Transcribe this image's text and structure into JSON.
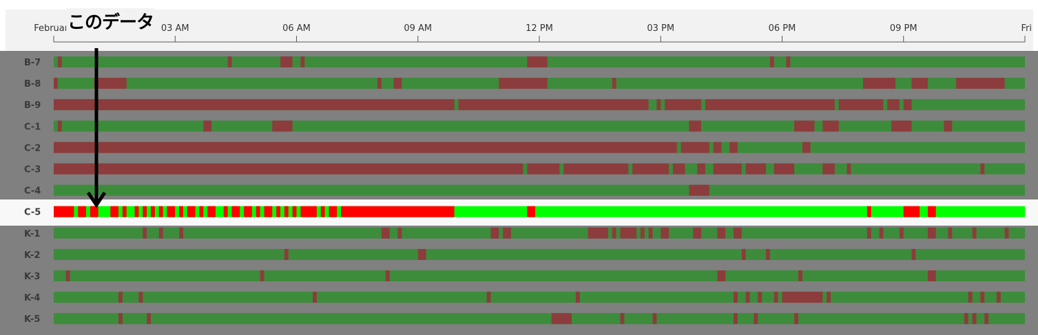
{
  "annotation": {
    "text": "このデータ"
  },
  "colors": {
    "ok": "#3c8c3c",
    "fail": "#8c3c3c",
    "ok_highlight": "#00ff00",
    "fail_highlight": "#ff0000",
    "background": "#808080",
    "arrow": "#000000"
  },
  "chart_data": {
    "type": "timeline",
    "x_ticks": [
      {
        "hour": 0,
        "label": "February"
      },
      {
        "hour": 3,
        "label": "03 AM"
      },
      {
        "hour": 6,
        "label": "06 AM"
      },
      {
        "hour": 9,
        "label": "09 AM"
      },
      {
        "hour": 12,
        "label": "12 PM"
      },
      {
        "hour": 15,
        "label": "03 PM"
      },
      {
        "hour": 18,
        "label": "06 PM"
      },
      {
        "hour": 21,
        "label": "09 PM"
      },
      {
        "hour": 24,
        "label": "Fri"
      }
    ],
    "xlim": [
      0,
      24
    ],
    "status_values": [
      "ok",
      "fail"
    ],
    "highlighted_row": 7,
    "rows": [
      {
        "label": "B-7",
        "fail": [
          [
            0.1,
            0.2
          ],
          [
            4.3,
            4.4
          ],
          [
            5.6,
            5.9
          ],
          [
            6.1,
            6.2
          ],
          [
            11.7,
            12.2
          ],
          [
            17.7,
            17.8
          ],
          [
            18.1,
            18.2
          ]
        ]
      },
      {
        "label": "B-8",
        "fail": [
          [
            0,
            0.1
          ],
          [
            1.0,
            1.8
          ],
          [
            8.0,
            8.1
          ],
          [
            8.4,
            8.6
          ],
          [
            11.0,
            12.2
          ],
          [
            13.8,
            13.9
          ],
          [
            20.0,
            20.8
          ],
          [
            21.2,
            21.6
          ],
          [
            22.3,
            23.5
          ]
        ]
      },
      {
        "label": "B-9",
        "fail": [
          [
            0,
            9.9
          ],
          [
            10.0,
            14.7
          ],
          [
            14.9,
            15.0
          ],
          [
            15.1,
            16.0
          ],
          [
            16.1,
            19.3
          ],
          [
            19.4,
            20.5
          ],
          [
            20.6,
            20.9
          ],
          [
            21.0,
            21.2
          ]
        ]
      },
      {
        "label": "C-1",
        "fail": [
          [
            0.1,
            0.2
          ],
          [
            3.7,
            3.9
          ],
          [
            5.4,
            5.9
          ],
          [
            15.7,
            16.0
          ],
          [
            18.3,
            18.8
          ],
          [
            19.0,
            19.4
          ],
          [
            20.7,
            21.2
          ],
          [
            22.0,
            22.2
          ]
        ]
      },
      {
        "label": "C-2",
        "fail": [
          [
            0,
            15.4
          ],
          [
            15.5,
            16.2
          ],
          [
            16.3,
            16.5
          ],
          [
            16.7,
            16.9
          ],
          [
            18.5,
            18.7
          ]
        ]
      },
      {
        "label": "C-3",
        "fail": [
          [
            0,
            11.6
          ],
          [
            11.7,
            12.5
          ],
          [
            12.6,
            14.2
          ],
          [
            14.3,
            15.2
          ],
          [
            15.3,
            15.6
          ],
          [
            15.9,
            16.1
          ],
          [
            16.3,
            17.0
          ],
          [
            17.1,
            17.6
          ],
          [
            17.8,
            18.3
          ],
          [
            19.0,
            19.3
          ],
          [
            19.6,
            19.7
          ],
          [
            22.9,
            23.0
          ]
        ]
      },
      {
        "label": "C-4",
        "fail": [
          [
            15.7,
            16.2
          ]
        ]
      },
      {
        "label": "C-5",
        "fail": [
          [
            0,
            0.5
          ],
          [
            0.6,
            0.8
          ],
          [
            0.9,
            1.1
          ],
          [
            1.4,
            1.6
          ],
          [
            1.7,
            1.8
          ],
          [
            2.0,
            2.1
          ],
          [
            2.2,
            2.3
          ],
          [
            2.4,
            2.5
          ],
          [
            2.6,
            2.7
          ],
          [
            2.8,
            3.0
          ],
          [
            3.1,
            3.2
          ],
          [
            3.3,
            3.5
          ],
          [
            3.6,
            3.7
          ],
          [
            3.8,
            4.0
          ],
          [
            4.2,
            4.3
          ],
          [
            4.4,
            4.6
          ],
          [
            4.7,
            4.9
          ],
          [
            5.0,
            5.1
          ],
          [
            5.2,
            5.4
          ],
          [
            5.5,
            5.6
          ],
          [
            5.7,
            5.8
          ],
          [
            5.9,
            6.0
          ],
          [
            6.1,
            6.5
          ],
          [
            6.6,
            6.7
          ],
          [
            6.8,
            7.0
          ],
          [
            7.1,
            9.9
          ],
          [
            11.7,
            11.9
          ],
          [
            20.1,
            20.2
          ],
          [
            21.0,
            21.4
          ],
          [
            21.6,
            21.8
          ]
        ]
      },
      {
        "label": "K-1",
        "fail": [
          [
            2.2,
            2.3
          ],
          [
            2.6,
            2.7
          ],
          [
            3.1,
            3.2
          ],
          [
            8.1,
            8.3
          ],
          [
            8.5,
            8.6
          ],
          [
            10.8,
            11.0
          ],
          [
            11.1,
            11.3
          ],
          [
            13.2,
            13.7
          ],
          [
            13.8,
            13.9
          ],
          [
            14.0,
            14.4
          ],
          [
            14.5,
            14.6
          ],
          [
            14.7,
            14.8
          ],
          [
            15.0,
            15.2
          ],
          [
            15.8,
            16.0
          ],
          [
            16.4,
            16.6
          ],
          [
            16.8,
            17.0
          ],
          [
            20.1,
            20.2
          ],
          [
            20.4,
            20.5
          ],
          [
            20.9,
            21.0
          ],
          [
            21.6,
            21.8
          ],
          [
            22.1,
            22.2
          ],
          [
            22.7,
            22.8
          ],
          [
            23.5,
            23.6
          ]
        ]
      },
      {
        "label": "K-2",
        "fail": [
          [
            5.7,
            5.8
          ],
          [
            9.0,
            9.2
          ],
          [
            17.0,
            17.1
          ],
          [
            17.6,
            17.7
          ],
          [
            21.2,
            21.3
          ]
        ]
      },
      {
        "label": "K-3",
        "fail": [
          [
            0.3,
            0.4
          ],
          [
            5.1,
            5.2
          ],
          [
            8.2,
            8.3
          ],
          [
            16.4,
            16.6
          ],
          [
            18.4,
            18.5
          ],
          [
            21.6,
            21.8
          ]
        ]
      },
      {
        "label": "K-4",
        "fail": [
          [
            1.6,
            1.7
          ],
          [
            2.1,
            2.2
          ],
          [
            6.4,
            6.5
          ],
          [
            10.7,
            10.8
          ],
          [
            12.9,
            13.0
          ],
          [
            16.8,
            16.9
          ],
          [
            17.1,
            17.2
          ],
          [
            17.4,
            17.5
          ],
          [
            17.8,
            17.9
          ],
          [
            18.0,
            19.0
          ],
          [
            19.1,
            19.2
          ],
          [
            22.6,
            22.7
          ],
          [
            22.9,
            23.0
          ],
          [
            23.3,
            23.4
          ]
        ]
      },
      {
        "label": "K-5",
        "fail": [
          [
            1.6,
            1.7
          ],
          [
            2.3,
            2.4
          ],
          [
            12.3,
            12.8
          ],
          [
            14.0,
            14.1
          ],
          [
            14.8,
            14.9
          ],
          [
            16.8,
            16.9
          ],
          [
            17.3,
            17.4
          ],
          [
            18.3,
            18.4
          ],
          [
            22.5,
            22.6
          ],
          [
            22.7,
            22.8
          ],
          [
            23.0,
            23.1
          ]
        ]
      }
    ]
  }
}
